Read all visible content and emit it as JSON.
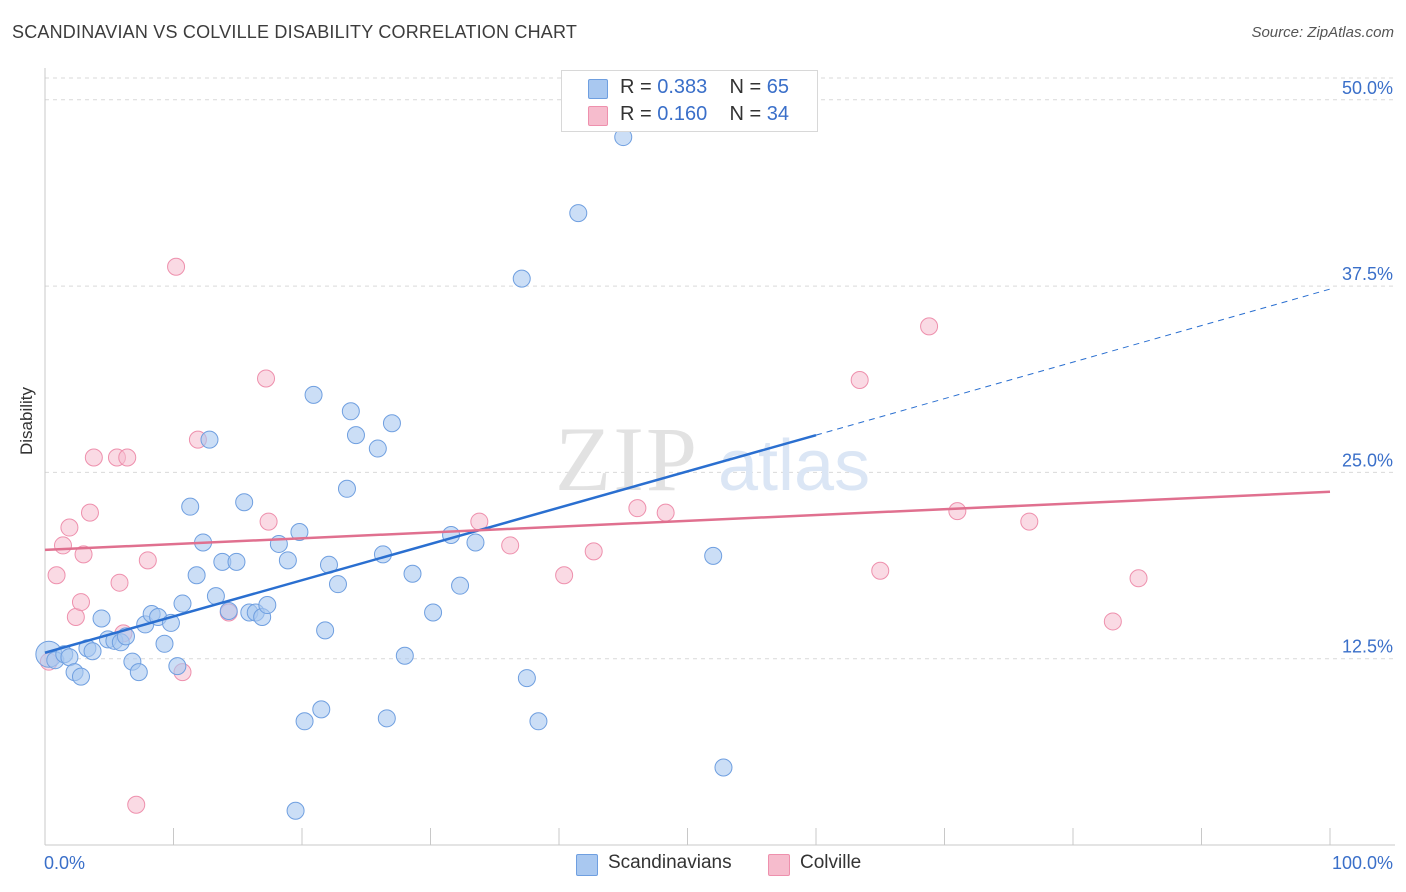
{
  "title": "SCANDINAVIAN VS COLVILLE DISABILITY CORRELATION CHART",
  "source": "Source: ZipAtlas.com",
  "watermark": {
    "zip": "ZIP",
    "atlas": "atlas"
  },
  "colors": {
    "blue_fill": "#a9c8f0",
    "blue_stroke": "#6f9fe0",
    "blue_line": "#2a6fd0",
    "pink_fill": "#f6bccd",
    "pink_stroke": "#ee90ad",
    "pink_line": "#e0708f",
    "tick_label": "#3a6fc9",
    "grid": "#d9d9d9"
  },
  "legend_top": {
    "rows": [
      {
        "r_label": "R = ",
        "r_value": "0.383",
        "n_label": "N = ",
        "n_value": "65",
        "color": "#a9c8f0"
      },
      {
        "r_label": "R = ",
        "r_value": "0.160",
        "n_label": "N = ",
        "n_value": "34",
        "color": "#f6bccd"
      }
    ]
  },
  "legend_bottom": [
    {
      "label": "Scandinavians",
      "color": "#a9c8f0"
    },
    {
      "label": "Colville",
      "color": "#f6bccd"
    }
  ],
  "chart_data": {
    "type": "scatter",
    "title": "SCANDINAVIAN VS COLVILLE DISABILITY CORRELATION CHART",
    "xlabel": "",
    "ylabel": "Disability",
    "xlim": [
      0,
      100
    ],
    "ylim": [
      0,
      52
    ],
    "x_tick_labels": [
      "0.0%",
      "100.0%"
    ],
    "y_ticks": [
      12.5,
      25.0,
      37.5,
      50.0
    ],
    "y_tick_labels": [
      "12.5%",
      "25.0%",
      "37.5%",
      "50.0%"
    ],
    "grid": "horizontal dashed",
    "legend_position": "top-center and bottom",
    "series": [
      {
        "name": "Scandinavians",
        "r": 0.383,
        "n": 65,
        "points": [
          [
            0.3,
            12.8
          ],
          [
            0.8,
            12.4
          ],
          [
            1.5,
            12.8
          ],
          [
            1.9,
            12.6
          ],
          [
            2.3,
            11.6
          ],
          [
            2.8,
            11.3
          ],
          [
            3.3,
            13.2
          ],
          [
            3.7,
            13.0
          ],
          [
            4.4,
            15.2
          ],
          [
            4.9,
            13.8
          ],
          [
            5.4,
            13.7
          ],
          [
            5.9,
            13.6
          ],
          [
            6.3,
            14.0
          ],
          [
            6.8,
            12.3
          ],
          [
            7.3,
            11.6
          ],
          [
            7.8,
            14.8
          ],
          [
            8.3,
            15.5
          ],
          [
            8.8,
            15.3
          ],
          [
            9.3,
            13.5
          ],
          [
            9.8,
            14.9
          ],
          [
            10.3,
            12.0
          ],
          [
            10.7,
            16.2
          ],
          [
            11.3,
            22.7
          ],
          [
            11.8,
            18.1
          ],
          [
            12.3,
            20.3
          ],
          [
            12.8,
            27.2
          ],
          [
            13.3,
            16.7
          ],
          [
            13.8,
            19.0
          ],
          [
            14.3,
            15.7
          ],
          [
            14.9,
            19.0
          ],
          [
            15.5,
            23.0
          ],
          [
            15.9,
            15.6
          ],
          [
            16.4,
            15.6
          ],
          [
            16.9,
            15.3
          ],
          [
            17.3,
            16.1
          ],
          [
            18.2,
            20.2
          ],
          [
            18.9,
            19.1
          ],
          [
            19.5,
            2.3
          ],
          [
            19.8,
            21.0
          ],
          [
            20.2,
            8.3
          ],
          [
            20.9,
            30.2
          ],
          [
            21.5,
            9.1
          ],
          [
            21.8,
            14.4
          ],
          [
            22.1,
            18.8
          ],
          [
            22.8,
            17.5
          ],
          [
            23.5,
            23.9
          ],
          [
            23.8,
            29.1
          ],
          [
            24.2,
            27.5
          ],
          [
            25.9,
            26.6
          ],
          [
            26.6,
            8.5
          ],
          [
            27.0,
            28.3
          ],
          [
            28.0,
            12.7
          ],
          [
            28.6,
            18.2
          ],
          [
            30.2,
            15.6
          ],
          [
            31.6,
            20.8
          ],
          [
            32.3,
            17.4
          ],
          [
            33.5,
            20.3
          ],
          [
            37.1,
            38.0
          ],
          [
            38.4,
            8.3
          ],
          [
            41.5,
            42.4
          ],
          [
            45.0,
            47.5
          ],
          [
            52.0,
            19.4
          ],
          [
            52.8,
            5.2
          ],
          [
            26.3,
            19.5
          ],
          [
            37.5,
            11.2
          ]
        ],
        "trend": {
          "x": [
            0,
            60,
            100
          ],
          "y": [
            12.9,
            27.5,
            37.3
          ],
          "solid_until": 60
        }
      },
      {
        "name": "Colville",
        "r": 0.16,
        "n": 34,
        "points": [
          [
            0.3,
            12.3
          ],
          [
            0.9,
            18.1
          ],
          [
            1.4,
            20.1
          ],
          [
            1.9,
            21.3
          ],
          [
            2.4,
            15.3
          ],
          [
            2.8,
            16.3
          ],
          [
            3.5,
            22.3
          ],
          [
            3.8,
            26.0
          ],
          [
            5.6,
            26.0
          ],
          [
            5.8,
            17.6
          ],
          [
            6.1,
            14.2
          ],
          [
            6.4,
            26.0
          ],
          [
            7.1,
            2.7
          ],
          [
            8.0,
            19.1
          ],
          [
            10.2,
            38.8
          ],
          [
            10.7,
            11.6
          ],
          [
            11.9,
            27.2
          ],
          [
            14.3,
            15.6
          ],
          [
            17.2,
            31.3
          ],
          [
            17.4,
            21.7
          ],
          [
            33.8,
            21.7
          ],
          [
            36.2,
            20.1
          ],
          [
            40.4,
            18.1
          ],
          [
            42.7,
            19.7
          ],
          [
            46.1,
            22.6
          ],
          [
            48.3,
            22.3
          ],
          [
            63.4,
            31.2
          ],
          [
            65.0,
            18.4
          ],
          [
            68.8,
            34.8
          ],
          [
            71.0,
            22.4
          ],
          [
            76.6,
            21.7
          ],
          [
            83.1,
            15.0
          ],
          [
            85.1,
            17.9
          ],
          [
            3.0,
            19.5
          ]
        ],
        "trend": {
          "x": [
            0,
            100
          ],
          "y": [
            19.8,
            23.7
          ]
        }
      }
    ]
  }
}
